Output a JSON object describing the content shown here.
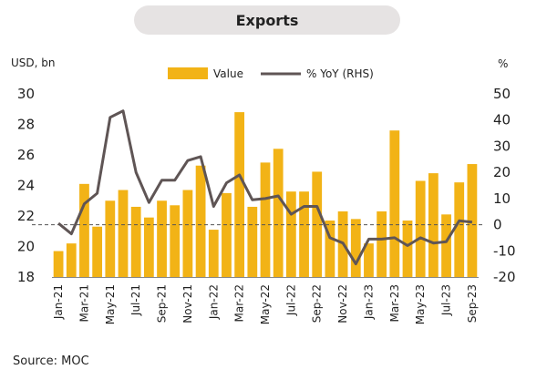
{
  "header": {
    "title": "Exports"
  },
  "footer": {
    "source": "Source: MOC"
  },
  "chart_data": {
    "type": "bar",
    "title": "Exports",
    "left_axis_label": "USD, bn",
    "right_axis_label": "%",
    "legend_position": "top",
    "grid": false,
    "categories": [
      "Jan-21",
      "Feb-21",
      "Mar-21",
      "Apr-21",
      "May-21",
      "Jun-21",
      "Jul-21",
      "Aug-21",
      "Sep-21",
      "Oct-21",
      "Nov-21",
      "Dec-21",
      "Jan-22",
      "Feb-22",
      "Mar-22",
      "Apr-22",
      "May-22",
      "Jun-22",
      "Jul-22",
      "Aug-22",
      "Sep-22",
      "Oct-22",
      "Nov-22",
      "Dec-22",
      "Jan-23",
      "Feb-23",
      "Mar-23",
      "Apr-23",
      "May-23",
      "Jun-23",
      "Jul-23",
      "Aug-23",
      "Sep-23"
    ],
    "tick_labels": [
      "Jan-21",
      "Mar-21",
      "May-21",
      "Jul-21",
      "Sep-21",
      "Nov-21",
      "Jan-22",
      "Mar-22",
      "May-22",
      "Jul-22",
      "Sep-22",
      "Nov-22",
      "Jan-23",
      "Mar-23",
      "May-23",
      "Jul-23",
      "Sep-23"
    ],
    "ylim_left": [
      18,
      30
    ],
    "yticks_left": [
      18,
      20,
      22,
      24,
      26,
      28,
      30
    ],
    "ylim_right": [
      -20,
      50
    ],
    "yticks_right": [
      -20,
      -10,
      0,
      10,
      20,
      30,
      40,
      50
    ],
    "reference_line_right": 0,
    "series": [
      {
        "name": "Value",
        "axis": "left",
        "type": "bar",
        "color": "#f2b316",
        "values": [
          19.7,
          20.2,
          24.1,
          21.3,
          23.0,
          23.7,
          22.6,
          21.9,
          23.0,
          22.7,
          23.7,
          25.3,
          21.1,
          23.5,
          28.8,
          22.6,
          25.5,
          26.4,
          23.6,
          23.6,
          24.9,
          21.7,
          22.3,
          21.8,
          20.2,
          22.3,
          27.6,
          21.7,
          24.3,
          24.8,
          22.1,
          24.2,
          25.4
        ]
      },
      {
        "name": "% YoY (RHS)",
        "axis": "right",
        "type": "line",
        "color": "#5f5555",
        "values": [
          0.5,
          -3.5,
          8,
          12,
          41,
          43.5,
          20,
          8.5,
          17,
          17,
          24.5,
          26,
          7,
          16,
          19,
          9.5,
          10,
          11,
          4,
          7,
          7,
          -5,
          -7,
          -15,
          -5.5,
          -5.5,
          -5,
          -8,
          -5,
          -7,
          -6.5,
          1.5,
          1
        ]
      }
    ]
  }
}
